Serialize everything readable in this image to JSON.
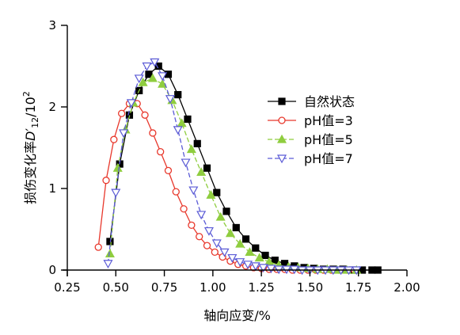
{
  "chart_data": {
    "type": "line",
    "title": "",
    "xlabel": "轴向应变/%",
    "ylabel": {
      "main": "损伤变化率",
      "symbol": "D",
      "symbol_mark": "′",
      "subscript": "12",
      "unit_prefix": "/10",
      "unit_exponent": "2"
    },
    "xlim": [
      0.25,
      2.0
    ],
    "ylim": [
      0,
      3
    ],
    "x_ticks": [
      "0.25",
      "0.50",
      "0.75",
      "1.00",
      "1.25",
      "1.50",
      "1.75",
      "2.00"
    ],
    "y_ticks": [
      "0",
      "1",
      "2",
      "3"
    ],
    "grid": false,
    "legend_position": "right",
    "series": [
      {
        "name": "自然状态",
        "marker": "square-filled",
        "color": "#000000",
        "line_style": "solid",
        "x": [
          0.47,
          0.52,
          0.57,
          0.62,
          0.67,
          0.72,
          0.77,
          0.82,
          0.87,
          0.92,
          0.97,
          1.02,
          1.07,
          1.12,
          1.17,
          1.22,
          1.27,
          1.32,
          1.37,
          1.42,
          1.47,
          1.52,
          1.57,
          1.62,
          1.67,
          1.72,
          1.77,
          1.82,
          1.85
        ],
        "y": [
          0.35,
          1.3,
          1.9,
          2.2,
          2.4,
          2.5,
          2.4,
          2.15,
          1.85,
          1.55,
          1.25,
          0.95,
          0.72,
          0.52,
          0.38,
          0.27,
          0.18,
          0.12,
          0.08,
          0.05,
          0.03,
          0.02,
          0.01,
          0.01,
          0.01,
          0.0,
          0.0,
          0.0,
          0.0
        ]
      },
      {
        "name": "pH值=3",
        "marker": "circle-open",
        "color": "#e8382c",
        "line_style": "solid",
        "x": [
          0.41,
          0.45,
          0.49,
          0.53,
          0.57,
          0.61,
          0.65,
          0.69,
          0.73,
          0.77,
          0.81,
          0.85,
          0.89,
          0.93,
          0.97,
          1.01,
          1.05,
          1.09,
          1.13,
          1.17,
          1.21,
          1.25,
          1.29,
          1.33,
          1.37,
          1.41,
          1.45,
          1.49,
          1.53,
          1.57,
          1.61,
          1.65,
          1.69,
          1.73
        ],
        "y": [
          0.28,
          1.1,
          1.6,
          1.92,
          2.04,
          2.04,
          1.9,
          1.68,
          1.45,
          1.22,
          0.96,
          0.75,
          0.55,
          0.41,
          0.3,
          0.22,
          0.16,
          0.11,
          0.07,
          0.05,
          0.03,
          0.02,
          0.01,
          0.01,
          0.01,
          0.0,
          0.0,
          0.0,
          0.0,
          0.0,
          0.0,
          0.0,
          0.0,
          0.0
        ]
      },
      {
        "name": "pH值=5",
        "marker": "triangle-up-filled",
        "color": "#8fcd3f",
        "line_style": "dashed",
        "x": [
          0.47,
          0.51,
          0.55,
          0.59,
          0.64,
          0.69,
          0.74,
          0.79,
          0.84,
          0.89,
          0.94,
          0.99,
          1.04,
          1.09,
          1.14,
          1.19,
          1.24,
          1.29,
          1.34,
          1.39,
          1.44,
          1.49,
          1.54,
          1.59,
          1.64,
          1.69,
          1.74
        ],
        "y": [
          0.2,
          1.25,
          1.72,
          2.05,
          2.3,
          2.35,
          2.28,
          2.08,
          1.8,
          1.48,
          1.2,
          0.92,
          0.65,
          0.45,
          0.32,
          0.22,
          0.15,
          0.1,
          0.06,
          0.04,
          0.03,
          0.02,
          0.01,
          0.01,
          0.0,
          0.0,
          0.0
        ]
      },
      {
        "name": "pH值=7",
        "marker": "triangle-down-open",
        "color": "#5b5bd6",
        "line_style": "dashed",
        "x": [
          0.46,
          0.5,
          0.54,
          0.58,
          0.62,
          0.66,
          0.7,
          0.74,
          0.78,
          0.82,
          0.86,
          0.9,
          0.94,
          0.98,
          1.02,
          1.06,
          1.1,
          1.14,
          1.18,
          1.22,
          1.26,
          1.3,
          1.34,
          1.38,
          1.42,
          1.46,
          1.5,
          1.54,
          1.58,
          1.62,
          1.66,
          1.7,
          1.74
        ],
        "y": [
          0.08,
          0.95,
          1.68,
          2.05,
          2.35,
          2.5,
          2.55,
          2.38,
          2.1,
          1.72,
          1.32,
          0.98,
          0.68,
          0.48,
          0.33,
          0.22,
          0.15,
          0.1,
          0.07,
          0.05,
          0.03,
          0.02,
          0.01,
          0.01,
          0.01,
          0.0,
          0.0,
          0.0,
          0.0,
          0.0,
          0.0,
          0.0,
          0.0
        ]
      }
    ]
  }
}
